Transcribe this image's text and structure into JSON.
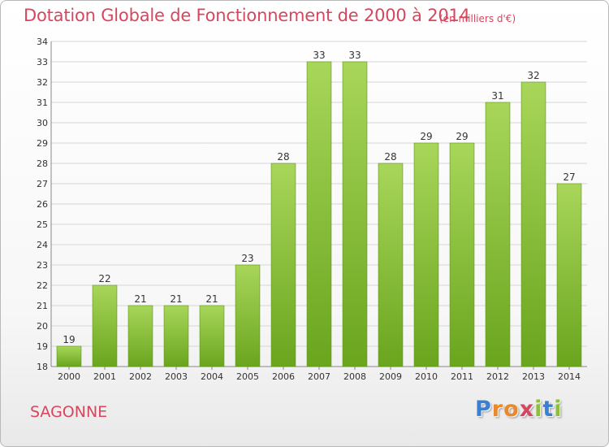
{
  "title": "Dotation Globale de Fonctionnement de 2000 à 2014",
  "unit_note": "(en milliers d'€)",
  "commune": "SAGONNE",
  "logo": {
    "text": "Proxiti",
    "letters": [
      "P",
      "r",
      "o",
      "x",
      "i",
      "t",
      "i"
    ],
    "colors": [
      "#3b7fd0",
      "#e8892d",
      "#e8892d",
      "#d7465e",
      "#8fbf3a",
      "#3b7fd0",
      "#8fbf3a"
    ]
  },
  "colors": {
    "bar_light": "#a8d65a",
    "bar_dark": "#6aa51e",
    "title": "#d7465e",
    "grid": "#d6d6d6"
  },
  "chart_data": {
    "type": "bar",
    "categories": [
      "2000",
      "2001",
      "2002",
      "2003",
      "2004",
      "2005",
      "2006",
      "2007",
      "2008",
      "2009",
      "2010",
      "2011",
      "2012",
      "2013",
      "2014"
    ],
    "values": [
      19,
      22,
      21,
      21,
      21,
      23,
      28,
      33,
      33,
      28,
      29,
      29,
      31,
      32,
      27
    ],
    "ylim": [
      18,
      34
    ],
    "yticks": [
      18,
      19,
      20,
      21,
      22,
      23,
      24,
      25,
      26,
      27,
      28,
      29,
      30,
      31,
      32,
      33,
      34
    ],
    "grid": true,
    "data_labels": true
  }
}
